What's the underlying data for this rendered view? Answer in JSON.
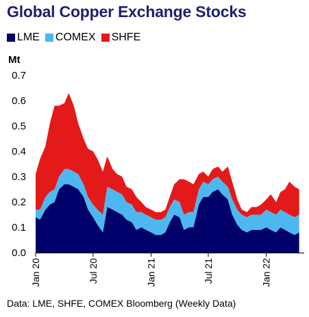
{
  "chart_data": {
    "type": "area",
    "stacked": true,
    "title": "Global Copper Exchange Stocks",
    "ylabel": "Mt",
    "ylim": [
      0,
      0.7
    ],
    "yticks": [
      "0.0",
      "0.1",
      "0.2",
      "0.3",
      "0.4",
      "0.5",
      "0.6",
      "0.7"
    ],
    "xrange": [
      "2020-01-01",
      "2022-05-01"
    ],
    "xticks": [
      {
        "date": "2020-01-01",
        "label": "Jan 20"
      },
      {
        "date": "2020-07-01",
        "label": "Jul 20"
      },
      {
        "date": "2021-01-01",
        "label": "Jan 21"
      },
      {
        "date": "2021-07-01",
        "label": "Jul 21"
      },
      {
        "date": "2022-01-01",
        "label": "Jan 22"
      }
    ],
    "grid": false,
    "legend_position": "top-left",
    "x": [
      "2020-01-01",
      "2020-01-15",
      "2020-02-01",
      "2020-02-15",
      "2020-03-01",
      "2020-03-15",
      "2020-04-01",
      "2020-04-15",
      "2020-05-01",
      "2020-05-15",
      "2020-06-01",
      "2020-06-15",
      "2020-07-01",
      "2020-07-15",
      "2020-08-01",
      "2020-08-15",
      "2020-09-01",
      "2020-09-15",
      "2020-10-01",
      "2020-10-15",
      "2020-11-01",
      "2020-11-15",
      "2020-12-01",
      "2020-12-15",
      "2021-01-01",
      "2021-01-15",
      "2021-02-01",
      "2021-02-15",
      "2021-03-01",
      "2021-03-15",
      "2021-04-01",
      "2021-04-15",
      "2021-05-01",
      "2021-05-15",
      "2021-06-01",
      "2021-06-15",
      "2021-07-01",
      "2021-07-15",
      "2021-08-01",
      "2021-08-15",
      "2021-09-01",
      "2021-09-15",
      "2021-10-01",
      "2021-10-15",
      "2021-11-01",
      "2021-11-15",
      "2021-12-01",
      "2021-12-15",
      "2022-01-01",
      "2022-01-15",
      "2022-02-01",
      "2022-02-15",
      "2022-03-01",
      "2022-03-15",
      "2022-04-01",
      "2022-04-15"
    ],
    "series": [
      {
        "name": "LME",
        "color": "#00006b",
        "values": [
          0.14,
          0.13,
          0.17,
          0.19,
          0.2,
          0.25,
          0.27,
          0.27,
          0.26,
          0.25,
          0.22,
          0.17,
          0.14,
          0.11,
          0.08,
          0.18,
          0.17,
          0.16,
          0.15,
          0.13,
          0.12,
          0.09,
          0.1,
          0.09,
          0.08,
          0.07,
          0.07,
          0.08,
          0.12,
          0.15,
          0.14,
          0.09,
          0.1,
          0.1,
          0.19,
          0.22,
          0.22,
          0.24,
          0.25,
          0.23,
          0.21,
          0.15,
          0.11,
          0.09,
          0.08,
          0.09,
          0.09,
          0.09,
          0.1,
          0.09,
          0.08,
          0.1,
          0.09,
          0.08,
          0.07,
          0.08
        ]
      },
      {
        "name": "COMEX",
        "color": "#4db8f0",
        "values": [
          0.03,
          0.04,
          0.05,
          0.05,
          0.05,
          0.05,
          0.06,
          0.06,
          0.06,
          0.06,
          0.05,
          0.05,
          0.05,
          0.06,
          0.07,
          0.08,
          0.08,
          0.08,
          0.08,
          0.07,
          0.07,
          0.07,
          0.06,
          0.06,
          0.06,
          0.06,
          0.06,
          0.06,
          0.06,
          0.06,
          0.06,
          0.06,
          0.06,
          0.06,
          0.06,
          0.06,
          0.05,
          0.05,
          0.05,
          0.05,
          0.05,
          0.06,
          0.06,
          0.06,
          0.06,
          0.06,
          0.06,
          0.06,
          0.07,
          0.07,
          0.07,
          0.07,
          0.07,
          0.07,
          0.07,
          0.07
        ]
      },
      {
        "name": "SHFE",
        "color": "#e41a1a",
        "values": [
          0.14,
          0.2,
          0.2,
          0.27,
          0.33,
          0.28,
          0.26,
          0.3,
          0.26,
          0.2,
          0.18,
          0.19,
          0.21,
          0.2,
          0.17,
          0.12,
          0.08,
          0.07,
          0.07,
          0.06,
          0.06,
          0.06,
          0.04,
          0.03,
          0.03,
          0.03,
          0.03,
          0.03,
          0.04,
          0.06,
          0.09,
          0.14,
          0.12,
          0.11,
          0.06,
          0.04,
          0.03,
          0.04,
          0.04,
          0.04,
          0.08,
          0.07,
          0.04,
          0.02,
          0.02,
          0.03,
          0.03,
          0.04,
          0.04,
          0.07,
          0.05,
          0.07,
          0.09,
          0.13,
          0.12,
          0.1
        ]
      }
    ]
  },
  "legend": [
    {
      "label": "LME",
      "color": "#00006b"
    },
    {
      "label": "COMEX",
      "color": "#4db8f0"
    },
    {
      "label": "SHFE",
      "color": "#e41a1a"
    }
  ],
  "footnote": "Data: LME, SHFE, COMEX Bloomberg (Weekly Data)"
}
